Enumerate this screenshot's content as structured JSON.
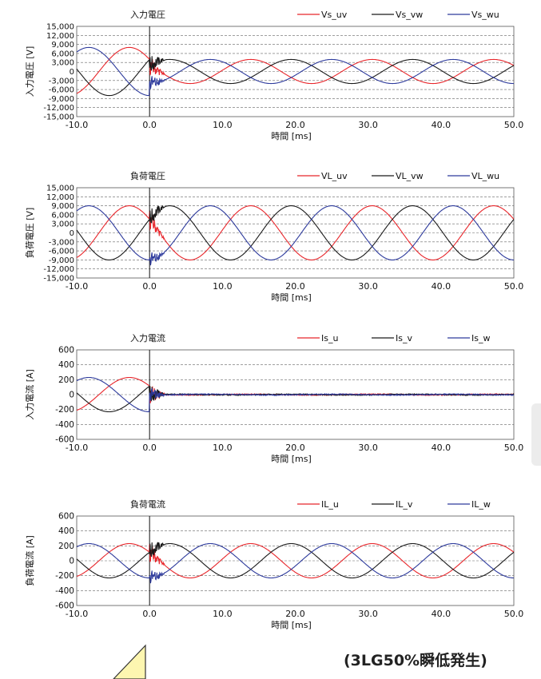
{
  "caption": "(3LG50%瞬低発生)",
  "chart_data": [
    {
      "type": "line",
      "title": "入力電圧",
      "xlabel": "時間 [ms]",
      "ylabel": "入力電圧 [V]",
      "xlim": [
        -10,
        50
      ],
      "ylim": [
        -15000,
        15000
      ],
      "xticks": [
        "-10.0",
        "0.0",
        "10.0",
        "20.0",
        "30.0",
        "40.0",
        "50.0"
      ],
      "yticks": [
        "15,000",
        "12,000",
        "9,000",
        "6,000",
        "3,000",
        "0",
        "-3,000",
        "-6,000",
        "-9,000",
        "-12,000",
        "-15,000"
      ],
      "grid": true,
      "legend_position": "top-right",
      "frequency_hz": 60,
      "event_ms": 0,
      "series": [
        {
          "name": "Vs_uv",
          "color": "#e8262b",
          "pre_amplitude": 8000,
          "post_amplitude": 4000,
          "phase_deg": 150
        },
        {
          "name": "Vs_vw",
          "color": "#1a1a1a",
          "pre_amplitude": 8000,
          "post_amplitude": 4000,
          "phase_deg": 30
        },
        {
          "name": "Vs_wu",
          "color": "#2d3a9c",
          "pre_amplitude": 8000,
          "post_amplitude": 4000,
          "phase_deg": 270
        }
      ]
    },
    {
      "type": "line",
      "title": "負荷電圧",
      "xlabel": "時間 [ms]",
      "ylabel": "負荷電圧 [V]",
      "xlim": [
        -10,
        50
      ],
      "ylim": [
        -15000,
        15000
      ],
      "xticks": [
        "-10.0",
        "0.0",
        "10.0",
        "20.0",
        "30.0",
        "40.0",
        "50.0"
      ],
      "yticks": [
        "15,000",
        "12,000",
        "9,000",
        "6,000",
        "3,000",
        "0",
        "-3,000",
        "-6,000",
        "-9,000",
        "-12,000",
        "-15,000"
      ],
      "grid": true,
      "legend_position": "top-right",
      "frequency_hz": 60,
      "event_ms": 0,
      "series": [
        {
          "name": "VL_uv",
          "color": "#e8262b",
          "pre_amplitude": 9000,
          "post_amplitude": 9000,
          "phase_deg": 150
        },
        {
          "name": "VL_vw",
          "color": "#1a1a1a",
          "pre_amplitude": 9000,
          "post_amplitude": 9000,
          "phase_deg": 30
        },
        {
          "name": "VL_wu",
          "color": "#2d3a9c",
          "pre_amplitude": 9000,
          "post_amplitude": 9000,
          "phase_deg": 270
        }
      ]
    },
    {
      "type": "line",
      "title": "入力電流",
      "xlabel": "時間 [ms]",
      "ylabel": "入力電流 [A]",
      "xlim": [
        -10,
        50
      ],
      "ylim": [
        -600,
        600
      ],
      "xticks": [
        "-10.0",
        "0.0",
        "10.0",
        "20.0",
        "30.0",
        "40.0",
        "50.0"
      ],
      "yticks": [
        "600",
        "400",
        "200",
        "0",
        "-200",
        "-400",
        "-600"
      ],
      "grid": true,
      "legend_position": "top-right",
      "frequency_hz": 60,
      "event_ms": 0,
      "series": [
        {
          "name": "Is_u",
          "color": "#e8262b",
          "pre_amplitude": 230,
          "post_amplitude": 5,
          "phase_deg": 150
        },
        {
          "name": "Is_v",
          "color": "#1a1a1a",
          "pre_amplitude": 230,
          "post_amplitude": 5,
          "phase_deg": 30
        },
        {
          "name": "Is_w",
          "color": "#2d3a9c",
          "pre_amplitude": 230,
          "post_amplitude": 5,
          "phase_deg": 270
        }
      ]
    },
    {
      "type": "line",
      "title": "負荷電流",
      "xlabel": "時間 [ms]",
      "ylabel": "負荷電流 [A]",
      "xlim": [
        -10,
        50
      ],
      "ylim": [
        -600,
        600
      ],
      "xticks": [
        "-10.0",
        "0.0",
        "10.0",
        "20.0",
        "30.0",
        "40.0",
        "50.0"
      ],
      "yticks": [
        "600",
        "400",
        "200",
        "0",
        "-200",
        "-400",
        "-600"
      ],
      "grid": true,
      "legend_position": "top-right",
      "frequency_hz": 60,
      "event_ms": 0,
      "series": [
        {
          "name": "IL_u",
          "color": "#e8262b",
          "pre_amplitude": 230,
          "post_amplitude": 230,
          "phase_deg": 150
        },
        {
          "name": "IL_v",
          "color": "#1a1a1a",
          "pre_amplitude": 230,
          "post_amplitude": 230,
          "phase_deg": 30
        },
        {
          "name": "IL_w",
          "color": "#2d3a9c",
          "pre_amplitude": 230,
          "post_amplitude": 230,
          "phase_deg": 270
        }
      ]
    }
  ]
}
